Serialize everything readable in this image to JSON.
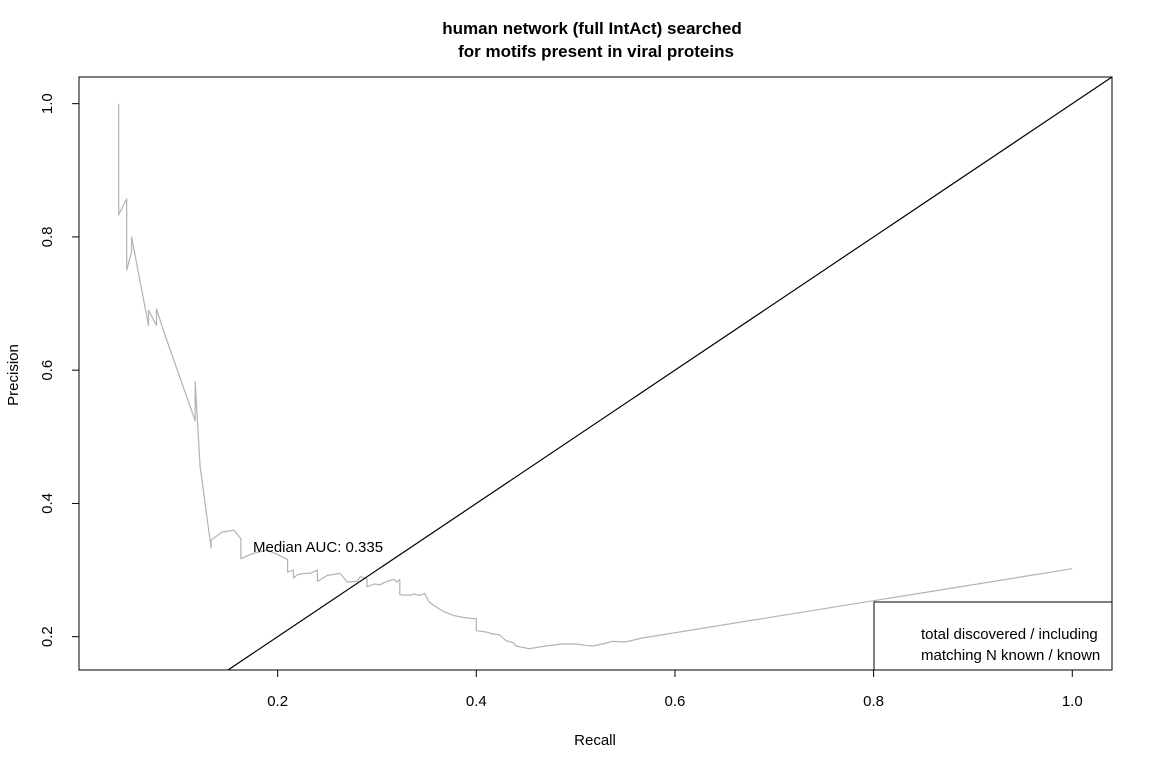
{
  "chart_data": {
    "type": "line",
    "title_line1": "human network (full IntAct) searched",
    "title_line2": "for motifs present in viral proteins",
    "xlabel": "Recall",
    "ylabel": "Precision",
    "xlim": [
      0.0,
      1.04
    ],
    "ylim": [
      0.15,
      1.04
    ],
    "x_ticks": [
      "0.2",
      "0.4",
      "0.6",
      "0.8",
      "1.0"
    ],
    "y_ticks": [
      "0.2",
      "0.4",
      "0.6",
      "0.8",
      "1.0"
    ],
    "grid": false,
    "annotation": "Median AUC: 0.335",
    "legend": {
      "position": "bottom-right",
      "lines": [
        "total discovered / including",
        "matching N known / known"
      ]
    },
    "series": [
      {
        "color": "#b3b3b3",
        "x": [
          0.04,
          0.04,
          0.048,
          0.048,
          0.053,
          0.053,
          0.07,
          0.07,
          0.078,
          0.078,
          0.086,
          0.117,
          0.117,
          0.122,
          0.122,
          0.133,
          0.133,
          0.144,
          0.156,
          0.163,
          0.163,
          0.175,
          0.19,
          0.2,
          0.21,
          0.21,
          0.216,
          0.216,
          0.22,
          0.227,
          0.233,
          0.24,
          0.24,
          0.25,
          0.263,
          0.27,
          0.28,
          0.283,
          0.29,
          0.29,
          0.297,
          0.303,
          0.31,
          0.317,
          0.32,
          0.323,
          0.323,
          0.333,
          0.337,
          0.343,
          0.348,
          0.352,
          0.357,
          0.367,
          0.377,
          0.383,
          0.39,
          0.4,
          0.4,
          0.41,
          0.417,
          0.423,
          0.43,
          0.437,
          0.44,
          0.453,
          0.47,
          0.487,
          0.5,
          0.51,
          0.517,
          0.527,
          0.537,
          0.55,
          0.567,
          1.0
        ],
        "y": [
          1.0,
          0.833,
          0.857,
          0.75,
          0.778,
          0.8,
          0.667,
          0.69,
          0.667,
          0.692,
          0.655,
          0.524,
          0.583,
          0.452,
          0.455,
          0.333,
          0.345,
          0.357,
          0.36,
          0.347,
          0.317,
          0.325,
          0.33,
          0.323,
          0.316,
          0.297,
          0.3,
          0.288,
          0.293,
          0.295,
          0.295,
          0.3,
          0.283,
          0.292,
          0.295,
          0.282,
          0.283,
          0.29,
          0.287,
          0.275,
          0.279,
          0.278,
          0.283,
          0.286,
          0.282,
          0.286,
          0.263,
          0.262,
          0.264,
          0.262,
          0.265,
          0.253,
          0.247,
          0.238,
          0.232,
          0.23,
          0.228,
          0.227,
          0.209,
          0.207,
          0.204,
          0.203,
          0.194,
          0.191,
          0.186,
          0.182,
          0.186,
          0.189,
          0.189,
          0.187,
          0.186,
          0.189,
          0.193,
          0.192,
          0.198,
          0.302
        ]
      },
      {
        "color": "#000000",
        "x": [
          0.15,
          1.04
        ],
        "y": [
          0.15,
          1.04
        ]
      }
    ]
  }
}
